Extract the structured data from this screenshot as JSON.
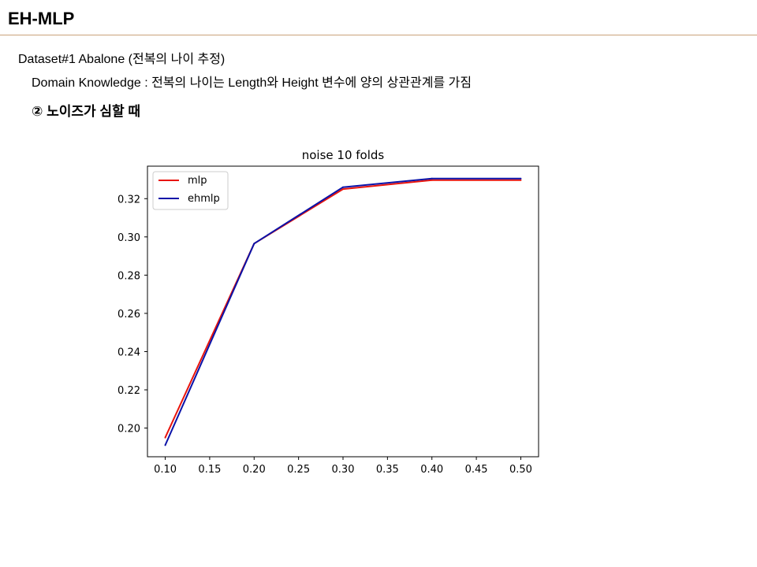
{
  "slide": {
    "title": "EH-MLP",
    "dataset_line": "Dataset#1 Abalone (전복의 나이 추정)",
    "domain_line": "Domain Knowledge : 전복의 나이는 Length와 Height 변수에 양의 상관관계를 가짐",
    "case_line": "② 노이즈가 심할 때"
  },
  "chart_data": {
    "type": "line",
    "title": "noise 10 folds",
    "xlabel": "",
    "ylabel": "",
    "x": [
      0.1,
      0.2,
      0.3,
      0.4,
      0.5
    ],
    "xlim": [
      0.08,
      0.52
    ],
    "ylim": [
      0.185,
      0.337
    ],
    "x_ticks": [
      "0.10",
      "0.15",
      "0.20",
      "0.25",
      "0.30",
      "0.35",
      "0.40",
      "0.45",
      "0.50"
    ],
    "y_ticks": [
      "0.20",
      "0.22",
      "0.24",
      "0.26",
      "0.28",
      "0.30",
      "0.32"
    ],
    "legend_position": "upper-left",
    "grid": false,
    "series": [
      {
        "name": "mlp",
        "color": "#e8140c",
        "values": [
          0.195,
          0.2965,
          0.325,
          0.3297,
          0.3297
        ]
      },
      {
        "name": "ehmlp",
        "color": "#0a12a8",
        "values": [
          0.191,
          0.2965,
          0.326,
          0.3305,
          0.3305
        ]
      }
    ]
  }
}
